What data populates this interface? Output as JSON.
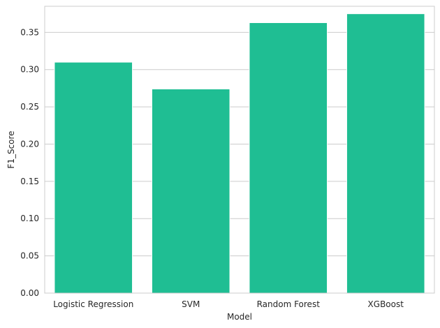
{
  "chart_data": {
    "type": "bar",
    "title": "",
    "xlabel": "Model",
    "ylabel": "F1_Score",
    "categories": [
      "Logistic Regression",
      "SVM",
      "Random Forest",
      "XGBoost"
    ],
    "values": [
      0.31,
      0.274,
      0.363,
      0.375
    ],
    "ylim": [
      0,
      0.385
    ],
    "yticks": [
      "0.00",
      "0.05",
      "0.10",
      "0.15",
      "0.20",
      "0.25",
      "0.30",
      "0.35"
    ],
    "grid": true,
    "legend": "none",
    "colors": {
      "bar": "#1fbe93",
      "bar_edge": "#ffffff",
      "grid": "#cccccc",
      "frame": "#cccccc",
      "text": "#262626",
      "background": "#ffffff"
    }
  }
}
